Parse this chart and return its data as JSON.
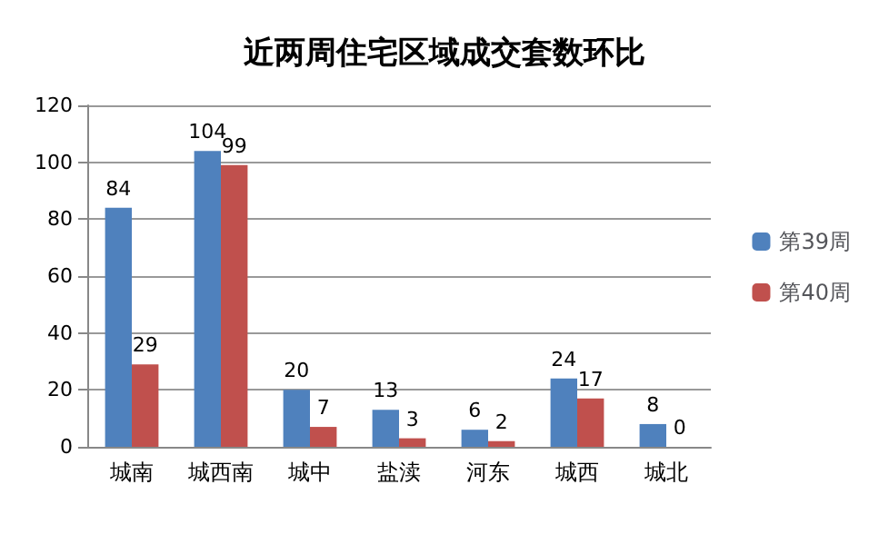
{
  "chart_data": {
    "type": "bar",
    "title": "近两周住宅区域成交套数环比",
    "categories": [
      "城南",
      "城西南",
      "城中",
      "盐渎",
      "河东",
      "城西",
      "城北"
    ],
    "series": [
      {
        "name": "第39周",
        "color": "#4f81bd",
        "values": [
          84,
          104,
          20,
          13,
          6,
          24,
          8
        ]
      },
      {
        "name": "第40周",
        "color": "#c0504d",
        "values": [
          29,
          99,
          7,
          3,
          2,
          17,
          0
        ]
      }
    ],
    "ylim": [
      0,
      120
    ],
    "yticks": [
      0,
      20,
      40,
      60,
      80,
      100,
      120
    ],
    "grid": "y",
    "legend": "right",
    "data_labels": true
  }
}
